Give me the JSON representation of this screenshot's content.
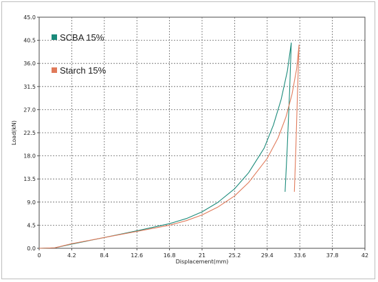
{
  "chart_data": {
    "type": "line",
    "title": "",
    "xlabel": "Displacement(mm)",
    "ylabel": "Load(kN)",
    "xlim": [
      0,
      42
    ],
    "ylim": [
      0,
      45
    ],
    "x_ticks": [
      "0",
      "4.2",
      "8.4",
      "12.6",
      "16.8",
      "21",
      "25.2",
      "29.4",
      "33.6",
      "37.8",
      "42"
    ],
    "y_ticks": [
      "0.0",
      "4.5",
      "9.0",
      "13.5",
      "18.0",
      "22.5",
      "27.0",
      "31.5",
      "36.0",
      "40.5",
      "45.0"
    ],
    "grid": true,
    "legend_position": "top-left",
    "series": [
      {
        "name": "SCBA 15%",
        "color": "#1a8a7a",
        "x": [
          0,
          2.0,
          4.2,
          8.4,
          12.6,
          16.8,
          19.0,
          21.0,
          23.0,
          25.2,
          27.0,
          29.0,
          30.2,
          31.2,
          32.0,
          32.5,
          32.3,
          32.0,
          31.7
        ],
        "y": [
          0.0,
          0.1,
          0.8,
          2.1,
          3.4,
          4.8,
          5.8,
          7.1,
          8.9,
          11.6,
          14.7,
          19.5,
          24.0,
          29.0,
          34.5,
          40.0,
          31.0,
          20.0,
          11.0
        ]
      },
      {
        "name": "Starch 15%",
        "color": "#e07a5a",
        "x": [
          0,
          2.0,
          4.2,
          8.4,
          12.6,
          16.8,
          19.0,
          21.0,
          23.0,
          25.2,
          27.0,
          29.4,
          30.8,
          31.8,
          32.6,
          33.2,
          33.5,
          33.3,
          33.1,
          32.9
        ],
        "y": [
          0.0,
          0.1,
          0.9,
          2.1,
          3.3,
          4.5,
          5.4,
          6.5,
          8.0,
          10.2,
          12.8,
          17.5,
          21.5,
          25.5,
          30.0,
          35.0,
          39.6,
          30.0,
          20.0,
          11.0
        ]
      }
    ]
  }
}
